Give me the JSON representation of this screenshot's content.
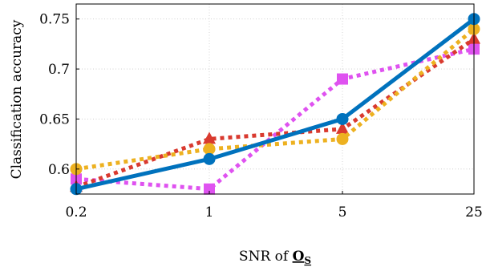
{
  "chart_data": {
    "type": "line",
    "x": [
      "0.2",
      "1",
      "5",
      "25"
    ],
    "xlabel": {
      "prefix": "SNR of ",
      "symbol": "O",
      "subscript": "S"
    },
    "ylabel": "Classification accuracy",
    "ylim": [
      0.575,
      0.765
    ],
    "yticks": [
      0.6,
      0.65,
      0.7,
      0.75
    ],
    "ytick_labels": [
      "0.6",
      "0.65",
      "0.7",
      "0.75"
    ],
    "grid": true,
    "legend": "none",
    "series": [
      {
        "style": "solid",
        "color": "#0072bd",
        "marker": "circle",
        "values": [
          0.58,
          0.61,
          0.65,
          0.75
        ]
      },
      {
        "style": "dotted",
        "color": "#edb120",
        "marker": "circle",
        "values": [
          0.6,
          0.62,
          0.63,
          0.74
        ]
      },
      {
        "style": "dotted",
        "color": "#d93a2f",
        "marker": "triangle",
        "values": [
          0.582,
          0.63,
          0.64,
          0.73
        ]
      },
      {
        "style": "dotted",
        "color": "#df52f0",
        "marker": "square",
        "values": [
          0.59,
          0.58,
          0.69,
          0.72
        ]
      }
    ]
  }
}
